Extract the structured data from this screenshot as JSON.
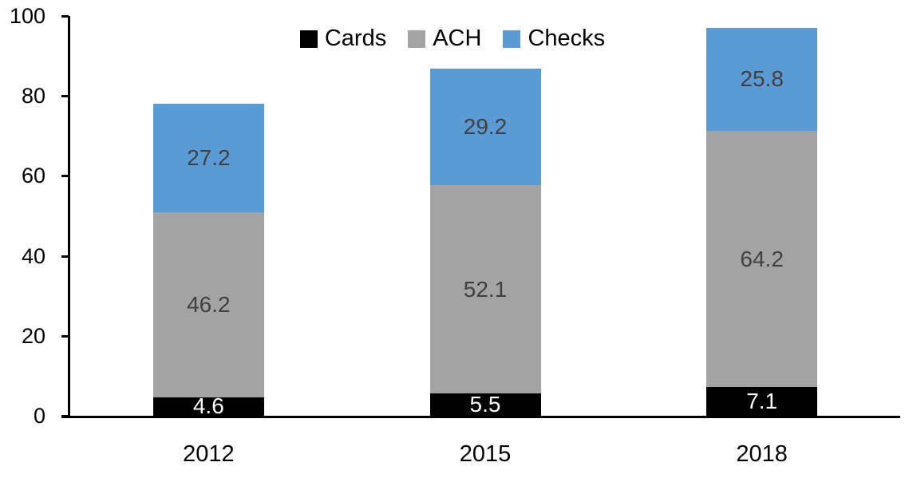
{
  "chart_data": {
    "type": "bar",
    "stacked": true,
    "title": "",
    "xlabel": "",
    "ylabel": "",
    "categories": [
      "2012",
      "2015",
      "2018"
    ],
    "series": [
      {
        "name": "Cards",
        "color": "#000000",
        "label_color": "#FFFFFF",
        "values": [
          4.6,
          5.5,
          7.1
        ]
      },
      {
        "name": "ACH",
        "color": "#A3A3A3",
        "label_color": "#404040",
        "values": [
          46.2,
          52.1,
          64.2
        ]
      },
      {
        "name": "Checks",
        "color": "#5B9BD5",
        "label_color": "#404040",
        "values": [
          27.2,
          29.2,
          25.8
        ]
      }
    ],
    "data_labels": true,
    "ylim": [
      0,
      100
    ],
    "y_ticks": [
      0,
      20,
      40,
      60,
      80,
      100
    ],
    "grid": false,
    "legend_position": "top-center",
    "axis_color": "#000000"
  }
}
